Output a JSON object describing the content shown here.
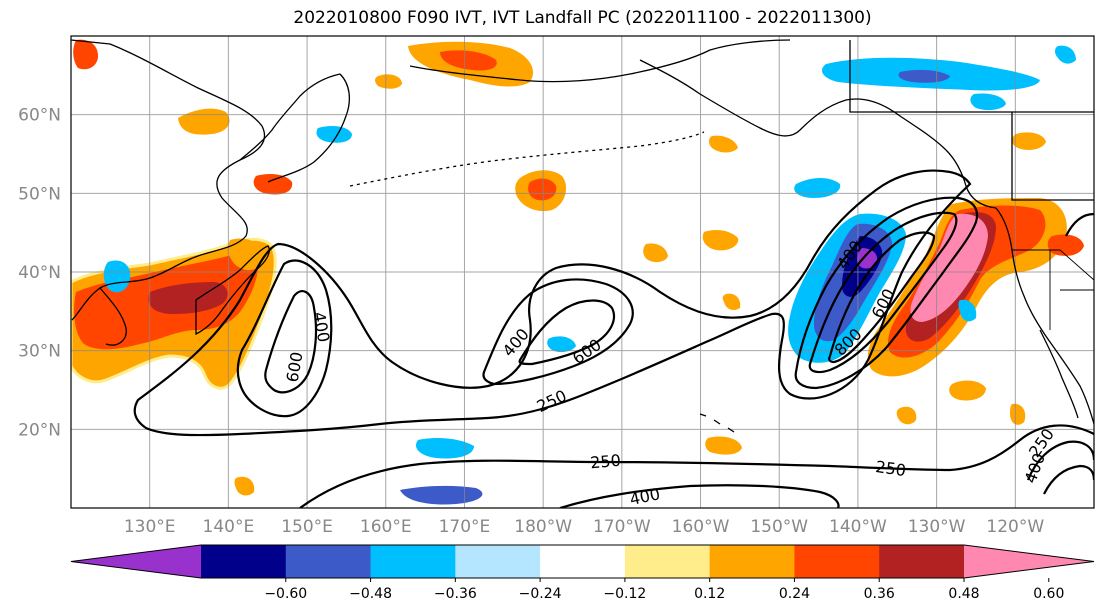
{
  "title": "2022010800 F090 IVT, IVT Landfall PC (2022011100 - 2022011300)",
  "map": {
    "lat_labels": [
      "60°N",
      "50°N",
      "40°N",
      "30°N",
      "20°N"
    ],
    "lon_labels": [
      "130°E",
      "140°E",
      "150°E",
      "160°E",
      "170°E",
      "180°W",
      "170°W",
      "160°W",
      "150°W",
      "140°W",
      "130°W",
      "120°W"
    ],
    "lat_ticks_deg": [
      60,
      50,
      40,
      30,
      20
    ],
    "lon_ticks_deg": [
      130,
      140,
      150,
      160,
      170,
      180,
      190,
      200,
      210,
      220,
      230,
      240
    ],
    "extent": {
      "lon_min": 120,
      "lon_max": 250,
      "lat_min": 10,
      "lat_max": 70
    },
    "contour_labels": [
      "400",
      "600",
      "400",
      "600",
      "250",
      "250",
      "250",
      "400",
      "800",
      "600",
      "400",
      "400",
      "250"
    ],
    "contour_levels": [
      250,
      400,
      600,
      800
    ]
  },
  "colorbar": {
    "tick_labels": [
      "−0.60",
      "−0.48",
      "−0.36",
      "−0.24",
      "−0.12",
      "0.12",
      "0.24",
      "0.36",
      "0.48",
      "0.60"
    ],
    "colors": [
      "#9932cc",
      "#00008b",
      "#3c5ac8",
      "#00bfff",
      "#b4e6ff",
      "#ffffff",
      "#ffec8b",
      "#ffa500",
      "#ff4500",
      "#b22222",
      "#ff88b0"
    ],
    "boundaries": [
      -0.6,
      -0.48,
      -0.36,
      -0.24,
      -0.12,
      0.12,
      0.24,
      0.36,
      0.48,
      0.6
    ]
  }
}
